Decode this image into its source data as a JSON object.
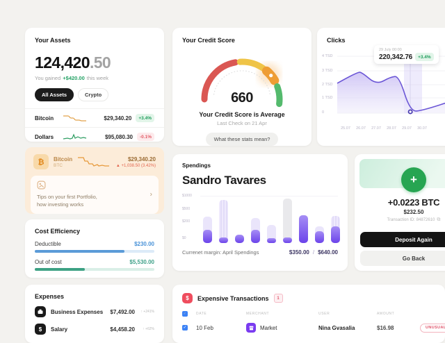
{
  "colors": {
    "positive_green": "#1f9d5c",
    "negative_red": "#e25c67",
    "chart_purple": "#6b4ef0",
    "bitcoin_orange": "#e8933c",
    "bar_blue": "#5b9bd8",
    "bar_teal": "#3da184",
    "deposit_green": "#27a552",
    "black": "#141414"
  },
  "assets": {
    "title": "Your Assets",
    "balance_main": "124,420",
    "balance_fraction": ".50",
    "gained_prefix": "You gained",
    "gained_amount": "+$420.00",
    "gained_suffix": "this week",
    "tabs": [
      {
        "label": "All Assets"
      },
      {
        "label": "Crypto"
      }
    ],
    "rows": [
      {
        "name": "Bitcoin",
        "value": "$29,340.20",
        "change": "+3.4%"
      },
      {
        "name": "Dollars",
        "value": "$95,080.30",
        "change": "-0.1%"
      }
    ]
  },
  "credit_score": {
    "title": "Your Credit Score",
    "score": "660",
    "status": "Your Credit Score is Average",
    "last_check": "Last Check on 21 Apr",
    "button_label": "What these stats mean?"
  },
  "clicks": {
    "title": "Clicks"
  },
  "bitcoin_card": {
    "name": "Bitcoin",
    "symbol": "BTC",
    "icon": "₿",
    "value": "$29,340.20",
    "change": "▲ +1,038.50 (3.42%)",
    "tips_line1": "Tips on your first Portfolio,",
    "tips_line2": "how investing works",
    "chevron": "›"
  },
  "cost_efficiency": {
    "title": "Cost Efficiency",
    "rows": [
      {
        "label": "Deductible",
        "value": "$230.00",
        "pct": 75
      },
      {
        "label": "Out of cost",
        "value": "$5,530.00",
        "pct": 42
      }
    ]
  },
  "spendings": {
    "title": "Spendings",
    "person": "Sandro Tavares",
    "footer_label": "Currenet margin: April Spendings",
    "current": "$350.00",
    "separator": "/",
    "total": "$640.00"
  },
  "deposit": {
    "plus": "+",
    "amount": "+0.0223 BTC",
    "usd": "$232.50",
    "tx_label": "Transaction ID: 84872610",
    "copy_icon": "⧉",
    "primary_label": "Deposit Again",
    "secondary_label": "Go Back"
  },
  "expenses": {
    "title": "Expenses",
    "rows": [
      {
        "label": "Business Expenses",
        "value": "$7,492.00",
        "change": "↑ +241%"
      },
      {
        "label": "Salary",
        "value": "$4,458.20",
        "change": "↑ +62%"
      }
    ]
  },
  "transactions": {
    "title": "Expensive Transactions",
    "badge": "1",
    "icon": "$",
    "headers": [
      "Date",
      "Merchant",
      "User",
      "Amount"
    ],
    "rows": [
      {
        "date": "10 Feb",
        "merchant": "Market",
        "user": "Nina Gvasalia",
        "amount": "$16.98",
        "tag": "UNUSUAL"
      }
    ]
  },
  "chart_data": [
    {
      "type": "area",
      "title": "Clicks",
      "x": [
        "25.07",
        "26.07",
        "27.07",
        "28.07",
        "29.07",
        "30.07"
      ],
      "y_tick_labels": [
        "4 TSD",
        "3 TSD",
        "2 TSD",
        "1 TSD",
        "0"
      ],
      "ylabel": "TSD",
      "ylim": [
        0,
        4
      ],
      "grid": true,
      "series": [
        {
          "name": "clicks",
          "points": [
            [
              0,
              2.1
            ],
            [
              0.17,
              2.9
            ],
            [
              0.21,
              2.85
            ],
            [
              0.33,
              2.0
            ],
            [
              0.45,
              2.55
            ],
            [
              0.52,
              2.6
            ],
            [
              0.615,
              0.1
            ],
            [
              0.72,
              0.2
            ],
            [
              1,
              0.95
            ]
          ]
        }
      ],
      "highlight": {
        "x_label": "29.07",
        "point_index": 6,
        "date": "29 July 00:00",
        "value": "220,342.76",
        "change": "+3.4%"
      }
    },
    {
      "type": "bar",
      "title": "April Spendings",
      "y_tick_labels": [
        "$1000",
        "$500",
        "$200",
        "$0"
      ],
      "ylim": [
        0,
        1030
      ],
      "series_names": [
        "total_budget",
        "spent"
      ],
      "bars": [
        {
          "total": 605,
          "spent": 310,
          "variant": "purple"
        },
        {
          "total": 1000,
          "spent": 130,
          "variant": "striped"
        },
        {
          "total": 200,
          "spent": 200,
          "variant": "purple"
        },
        {
          "total": 580,
          "spent": 310,
          "variant": "purple"
        },
        {
          "total": 420,
          "spent": 120,
          "variant": "purple"
        },
        {
          "total": 1030,
          "spent": 130,
          "variant": "gray"
        },
        {
          "total": 640,
          "spent": 640,
          "variant": "purple"
        },
        {
          "total": 390,
          "spent": 280,
          "variant": "purple"
        },
        {
          "total": 620,
          "spent": 390,
          "variant": "striped"
        }
      ]
    }
  ]
}
